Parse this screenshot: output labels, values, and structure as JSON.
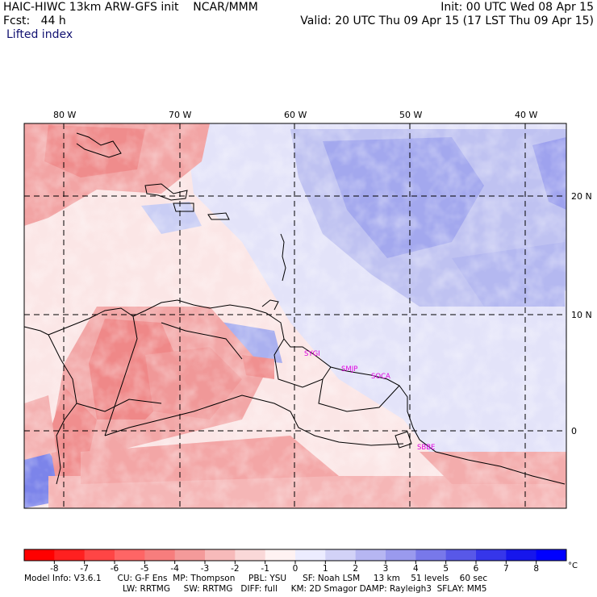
{
  "header": {
    "title": "HAIC-HIWC 13km ARW-GFS init    NCAR/MMM",
    "forecast": "Fcst:   44 h",
    "field": "Lifted index",
    "init": "Init: 00 UTC Wed 08 Apr 15",
    "valid": "Valid: 20 UTC Thu 09 Apr 15 (17 LST Thu 09 Apr 15)"
  },
  "map": {
    "lon_labels": [
      "80 W",
      "70 W",
      "60 W",
      "50 W",
      "40 W"
    ],
    "lat_labels": [
      "20 N",
      "10 N",
      "0"
    ],
    "stations": [
      "SYGI",
      "SMJP",
      "SOCA",
      "SBBE"
    ]
  },
  "colorbar": {
    "ticks": [
      "-8",
      "-7",
      "-6",
      "-5",
      "-4",
      "-3",
      "-2",
      "-1",
      "0",
      "1",
      "2",
      "3",
      "4",
      "5",
      "6",
      "7",
      "8"
    ],
    "unit": "°C",
    "colors": [
      "#ff0000",
      "#ff2020",
      "#ff4545",
      "#ff6565",
      "#f77d7d",
      "#f49a9a",
      "#f7baba",
      "#fad8d8",
      "#fff2f2",
      "#ececff",
      "#d2d2f7",
      "#b6b6f2",
      "#9a9aee",
      "#7878ea",
      "#5858e8",
      "#3636ea",
      "#1616ec",
      "#0000ff"
    ]
  },
  "footer": {
    "line1": "Model Info: V3.6.1      CU: G-F Ens  MP: Thompson     PBL: YSU      SF: Noah LSM     13 km    51 levels    60 sec",
    "line2": "LW: RRTMG     SW: RRTMG   DIFF: full     KM: 2D Smagor DAMP: Rayleigh3  SFLAY: MM5"
  }
}
